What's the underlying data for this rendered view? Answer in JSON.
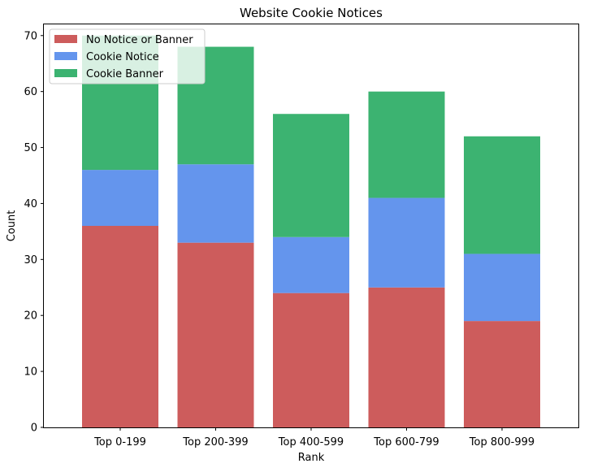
{
  "chart_data": {
    "type": "bar",
    "stacked": true,
    "title": "Website Cookie Notices",
    "xlabel": "Rank",
    "ylabel": "Count",
    "ylim": [
      0,
      72
    ],
    "yticks": [
      0,
      10,
      20,
      30,
      40,
      50,
      60,
      70
    ],
    "categories": [
      "Top 0-199",
      "Top 200-399",
      "Top 400-599",
      "Top 600-799",
      "Top 800-999"
    ],
    "series": [
      {
        "name": "No Notice or Banner",
        "color": "#cd5c5c",
        "values": [
          36,
          33,
          24,
          25,
          19
        ]
      },
      {
        "name": "Cookie Notice",
        "color": "#6495ed",
        "values": [
          10,
          14,
          10,
          16,
          12
        ]
      },
      {
        "name": "Cookie Banner",
        "color": "#3cb371",
        "values": [
          24,
          21,
          22,
          19,
          21
        ]
      }
    ],
    "legend": "top-left",
    "grid": false
  }
}
